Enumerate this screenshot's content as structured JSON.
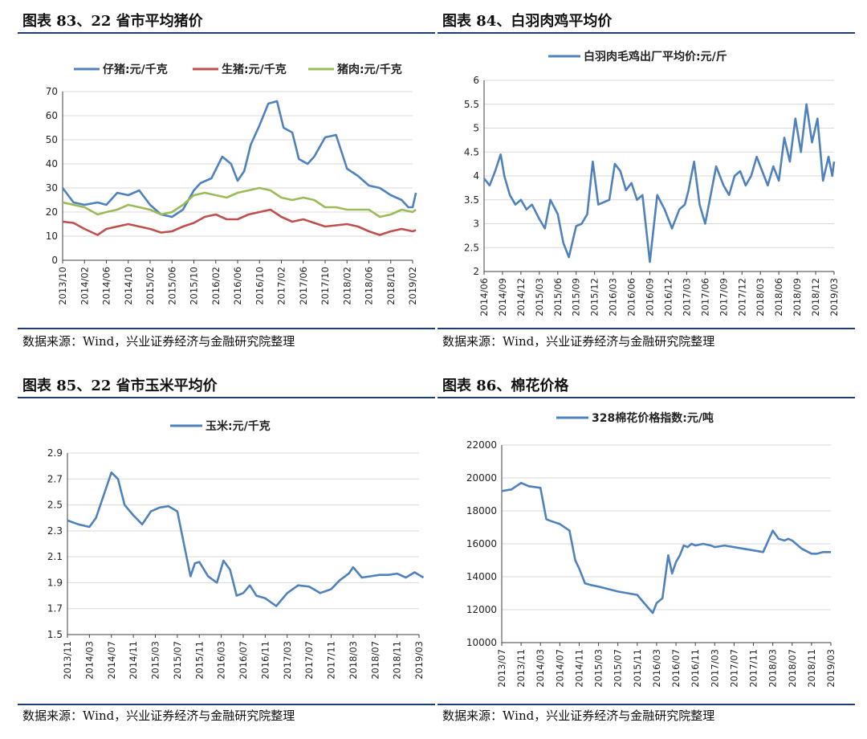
{
  "chart_data": [
    {
      "id": "c83",
      "type": "line",
      "title": "图表 83、22 省市平均猪价",
      "source": "数据来源：Wind，兴业证券经济与金融研究院整理",
      "ylim": [
        0,
        70
      ],
      "yticks": [
        "0",
        "10",
        "20",
        "30",
        "40",
        "50",
        "60",
        "70"
      ],
      "categories": [
        "2013/10",
        "2014/02",
        "2014/06",
        "2014/10",
        "2015/02",
        "2015/06",
        "2015/10",
        "2016/02",
        "2016/06",
        "2016/10",
        "2017/02",
        "2017/06",
        "2017/10",
        "2018/02",
        "2018/06",
        "2018/10",
        "2019/02"
      ],
      "legend_position": "top",
      "series": [
        {
          "name": "仔猪:元/千克",
          "color": "#4f81bd",
          "x": [
            0,
            0.5,
            1,
            1.6,
            2,
            2.5,
            3,
            3.5,
            4,
            4.5,
            5,
            5.5,
            6,
            6.3,
            6.8,
            7.3,
            7.7,
            8,
            8.3,
            8.6,
            9,
            9.4,
            9.8,
            10.1,
            10.5,
            10.8,
            11.2,
            11.5,
            12,
            12.5,
            13,
            13.5,
            14,
            14.5,
            15,
            15.5,
            15.8,
            16,
            16.15
          ],
          "y": [
            30,
            24,
            23,
            24,
            23,
            28,
            27,
            29,
            23,
            19,
            18,
            21,
            29,
            32,
            34,
            43,
            40,
            33,
            37,
            48,
            56,
            65,
            66,
            55,
            53,
            42,
            40,
            43,
            51,
            52,
            38,
            35,
            31,
            30,
            27,
            25,
            22,
            22,
            28
          ]
        },
        {
          "name": "生猪:元/千克",
          "color": "#c0504d",
          "x": [
            0,
            0.5,
            1,
            1.6,
            2,
            2.5,
            3,
            3.5,
            4,
            4.5,
            5,
            5.5,
            6,
            6.5,
            7,
            7.5,
            8,
            8.5,
            9,
            9.5,
            10,
            10.5,
            11,
            11.5,
            12,
            12.5,
            13,
            13.5,
            14,
            14.5,
            15,
            15.5,
            16,
            16.15
          ],
          "y": [
            16,
            15.5,
            13,
            10.5,
            13,
            14,
            15,
            14,
            13,
            11.5,
            12,
            14,
            15.5,
            18,
            19,
            17,
            17,
            19,
            20,
            21,
            18,
            16,
            17,
            15.5,
            14,
            14.5,
            15,
            14,
            12,
            10.5,
            12,
            13,
            12,
            12.5
          ]
        },
        {
          "name": "猪肉:元/千克",
          "color": "#9bbb59",
          "x": [
            0,
            0.5,
            1,
            1.6,
            2,
            2.5,
            3,
            3.5,
            4,
            4.5,
            5,
            5.5,
            6,
            6.5,
            7,
            7.5,
            8,
            8.5,
            9,
            9.5,
            10,
            10.5,
            11,
            11.5,
            12,
            12.5,
            13,
            13.5,
            14,
            14.5,
            15,
            15.5,
            16,
            16.15
          ],
          "y": [
            24,
            23,
            22,
            19,
            20,
            21,
            23,
            22,
            21,
            19,
            20,
            23,
            27,
            28,
            27,
            26,
            28,
            29,
            30,
            29,
            26,
            25,
            26,
            25,
            22,
            22,
            21,
            21,
            21,
            18,
            19,
            21,
            20,
            21
          ]
        }
      ]
    },
    {
      "id": "c84",
      "type": "line",
      "title": "图表 84、白羽肉鸡平均价",
      "source": "数据来源：Wind，兴业证券经济与金融研究院整理",
      "ylim": [
        2,
        6
      ],
      "yticks": [
        "2",
        "2.5",
        "3",
        "3.5",
        "4",
        "4.5",
        "5",
        "5.5",
        "6"
      ],
      "categories": [
        "2014/06",
        "2014/09",
        "2014/12",
        "2015/03",
        "2015/06",
        "2015/09",
        "2015/12",
        "2016/03",
        "2016/06",
        "2016/09",
        "2016/12",
        "2017/03",
        "2017/06",
        "2017/09",
        "2017/12",
        "2018/03",
        "2018/06",
        "2018/09",
        "2018/12",
        "2019/03"
      ],
      "legend_position": "top",
      "series": [
        {
          "name": "白羽肉毛鸡出厂平均价:元/斤",
          "color": "#4f81bd",
          "x": [
            0,
            0.3,
            0.6,
            0.9,
            1.1,
            1.4,
            1.7,
            2,
            2.3,
            2.6,
            3,
            3.3,
            3.6,
            4,
            4.3,
            4.6,
            5,
            5.3,
            5.6,
            5.9,
            6.2,
            6.5,
            6.8,
            7.1,
            7.4,
            7.7,
            8,
            8.3,
            8.6,
            9,
            9.4,
            9.8,
            10.2,
            10.6,
            10.9,
            11.1,
            11.4,
            11.7,
            12,
            12.3,
            12.6,
            13,
            13.3,
            13.6,
            13.9,
            14.2,
            14.5,
            14.8,
            15.1,
            15.4,
            15.7,
            16,
            16.3,
            16.6,
            16.9,
            17.2,
            17.5,
            17.8,
            18.1,
            18.4,
            18.7,
            18.9,
            19
          ],
          "y": [
            3.95,
            3.8,
            4.1,
            4.45,
            4.0,
            3.6,
            3.4,
            3.5,
            3.3,
            3.4,
            3.1,
            2.9,
            3.5,
            3.2,
            2.6,
            2.3,
            2.95,
            3.0,
            3.2,
            4.3,
            3.4,
            3.45,
            3.5,
            4.25,
            4.1,
            3.7,
            3.85,
            3.5,
            3.6,
            2.2,
            3.6,
            3.3,
            2.9,
            3.3,
            3.4,
            3.7,
            4.3,
            3.4,
            3.0,
            3.6,
            4.2,
            3.8,
            3.6,
            4.0,
            4.1,
            3.8,
            4.0,
            4.4,
            4.1,
            3.8,
            4.2,
            3.9,
            4.8,
            4.3,
            5.2,
            4.5,
            5.5,
            4.7,
            5.2,
            3.9,
            4.4,
            4.0,
            4.3
          ]
        }
      ]
    },
    {
      "id": "c85",
      "type": "line",
      "title": "图表 85、22 省市玉米平均价",
      "source": "数据来源：Wind，兴业证券经济与金融研究院整理",
      "ylim": [
        1.5,
        2.9
      ],
      "yticks": [
        "1.5",
        "1.7",
        "1.9",
        "2.1",
        "2.3",
        "2.5",
        "2.7",
        "2.9"
      ],
      "categories": [
        "2013/11",
        "2014/03",
        "2014/07",
        "2014/11",
        "2015/03",
        "2015/07",
        "2015/11",
        "2016/03",
        "2016/07",
        "2016/11",
        "2017/03",
        "2017/07",
        "2017/11",
        "2018/03",
        "2018/07",
        "2018/11",
        "2019/03"
      ],
      "legend_position": "top",
      "series": [
        {
          "name": "玉米:元/千克",
          "color": "#4f81bd",
          "x": [
            0,
            0.5,
            1,
            1.3,
            1.6,
            2,
            2.3,
            2.6,
            3,
            3.4,
            3.8,
            4.2,
            4.6,
            5,
            5.3,
            5.6,
            5.8,
            6,
            6.4,
            6.8,
            7.1,
            7.4,
            7.7,
            8,
            8.3,
            8.6,
            9,
            9.5,
            10,
            10.5,
            11,
            11.5,
            12,
            12.4,
            12.8,
            13,
            13.4,
            13.8,
            14.2,
            14.6,
            15,
            15.4,
            15.8,
            16,
            16.2
          ],
          "y": [
            2.38,
            2.35,
            2.33,
            2.4,
            2.55,
            2.75,
            2.7,
            2.5,
            2.42,
            2.35,
            2.45,
            2.48,
            2.49,
            2.45,
            2.2,
            1.95,
            2.05,
            2.06,
            1.95,
            1.9,
            2.07,
            2.0,
            1.8,
            1.82,
            1.88,
            1.8,
            1.78,
            1.72,
            1.82,
            1.88,
            1.87,
            1.82,
            1.85,
            1.92,
            1.97,
            2.02,
            1.94,
            1.95,
            1.96,
            1.96,
            1.97,
            1.94,
            1.98,
            1.96,
            1.94
          ]
        }
      ]
    },
    {
      "id": "c86",
      "type": "line",
      "title": "图表 86、棉花价格",
      "source": "数据来源：Wind，兴业证券经济与金融研究院整理",
      "ylim": [
        10000,
        22000
      ],
      "yticks": [
        "10000",
        "12000",
        "14000",
        "16000",
        "18000",
        "20000",
        "22000"
      ],
      "categories": [
        "2013/07",
        "2013/11",
        "2014/03",
        "2014/07",
        "2014/11",
        "2015/03",
        "2015/07",
        "2015/11",
        "2016/03",
        "2016/07",
        "2016/11",
        "2017/03",
        "2017/07",
        "2017/11",
        "2018/03",
        "2018/07",
        "2018/11",
        "2019/03"
      ],
      "legend_position": "top",
      "series": [
        {
          "name": "328棉花价格指数:元/吨",
          "color": "#4f81bd",
          "x": [
            0,
            0.5,
            1,
            1.4,
            2,
            2.3,
            2.5,
            3,
            3.5,
            3.8,
            4,
            4.3,
            4.6,
            5,
            6,
            7,
            7.5,
            7.8,
            8,
            8.3,
            8.6,
            8.8,
            9,
            9.2,
            9.4,
            9.6,
            9.8,
            10,
            10.4,
            10.8,
            11,
            11.5,
            12,
            12.5,
            13,
            13.5,
            14,
            14.3,
            14.6,
            14.8,
            15,
            15.5,
            16,
            16.3,
            16.6,
            16.8,
            17
          ],
          "y": [
            19200,
            19300,
            19700,
            19500,
            19400,
            17500,
            17400,
            17200,
            16800,
            15000,
            14500,
            13600,
            13500,
            13400,
            13100,
            12900,
            12200,
            11800,
            12400,
            12700,
            15300,
            14200,
            14900,
            15300,
            15900,
            15800,
            16000,
            15900,
            16000,
            15900,
            15800,
            15900,
            15800,
            15700,
            15600,
            15500,
            16800,
            16300,
            16200,
            16300,
            16200,
            15700,
            15400,
            15400,
            15500,
            15500,
            15500
          ]
        }
      ]
    }
  ]
}
